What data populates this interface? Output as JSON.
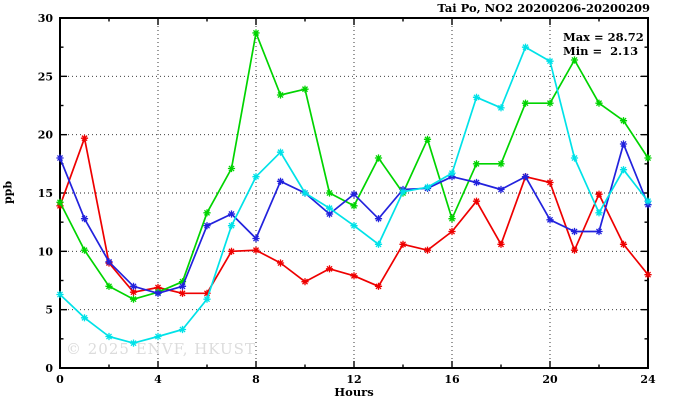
{
  "title": "Tai Po, NO2 20200206-20200209",
  "annotation": {
    "max_label": "Max = 28.72",
    "min_label": "Min =  2.13"
  },
  "watermark": "© 2025 ENVF, HKUST",
  "chart_data": {
    "type": "line",
    "title": "Tai Po, NO2 20200206-20200209",
    "xlabel": "Hours",
    "ylabel": "ppb",
    "xlim": [
      0,
      24
    ],
    "ylim": [
      0,
      30
    ],
    "xticks_major": [
      0,
      4,
      8,
      12,
      16,
      20,
      24
    ],
    "xticks_minor": [
      2,
      6,
      10,
      14,
      18,
      22
    ],
    "yticks_major": [
      0,
      5,
      10,
      15,
      20,
      25,
      30
    ],
    "yticks_minor": [
      2.5,
      7.5,
      12.5,
      17.5,
      22.5,
      27.5
    ],
    "grid_x": [
      4,
      8,
      12,
      16,
      20
    ],
    "grid_y": [
      5,
      10,
      15,
      20,
      25
    ],
    "legend_position": "none",
    "grid": true,
    "x": [
      0,
      1,
      2,
      3,
      4,
      5,
      6,
      7,
      8,
      9,
      10,
      11,
      12,
      13,
      14,
      15,
      16,
      17,
      18,
      19,
      20,
      21,
      22,
      23,
      24
    ],
    "series": [
      {
        "name": "series-red",
        "color": "#ee0000",
        "values": [
          13.9,
          19.7,
          9.0,
          6.5,
          6.9,
          6.4,
          6.4,
          10.0,
          10.1,
          9.0,
          7.4,
          8.5,
          7.9,
          7.0,
          10.6,
          10.1,
          11.7,
          14.3,
          10.6,
          16.4,
          15.9,
          10.1,
          14.9,
          10.6,
          8.0
        ]
      },
      {
        "name": "series-green",
        "color": "#00d400",
        "values": [
          14.2,
          10.1,
          7.0,
          5.9,
          6.5,
          7.4,
          13.3,
          17.1,
          28.72,
          23.4,
          23.9,
          15.0,
          13.9,
          18.0,
          15.0,
          19.6,
          12.8,
          17.5,
          17.5,
          22.7,
          22.7,
          26.4,
          22.7,
          21.2,
          18.0
        ]
      },
      {
        "name": "series-blue",
        "color": "#2222dd",
        "values": [
          18.0,
          12.8,
          9.1,
          7.0,
          6.4,
          7.0,
          12.2,
          13.2,
          11.1,
          16.0,
          15.0,
          13.2,
          14.9,
          12.8,
          15.3,
          15.4,
          16.4,
          15.9,
          15.3,
          16.4,
          12.7,
          11.7,
          11.7,
          19.2,
          14.0
        ]
      },
      {
        "name": "series-cyan",
        "color": "#00e2e8",
        "values": [
          6.3,
          4.3,
          2.7,
          2.13,
          2.7,
          3.3,
          5.9,
          12.2,
          16.4,
          18.5,
          15.0,
          13.7,
          12.2,
          10.6,
          15.1,
          15.5,
          16.7,
          23.2,
          22.3,
          27.5,
          26.3,
          18.0,
          13.3,
          17.0,
          14.3
        ]
      }
    ],
    "stats": {
      "max": 28.72,
      "min": 2.13
    }
  }
}
